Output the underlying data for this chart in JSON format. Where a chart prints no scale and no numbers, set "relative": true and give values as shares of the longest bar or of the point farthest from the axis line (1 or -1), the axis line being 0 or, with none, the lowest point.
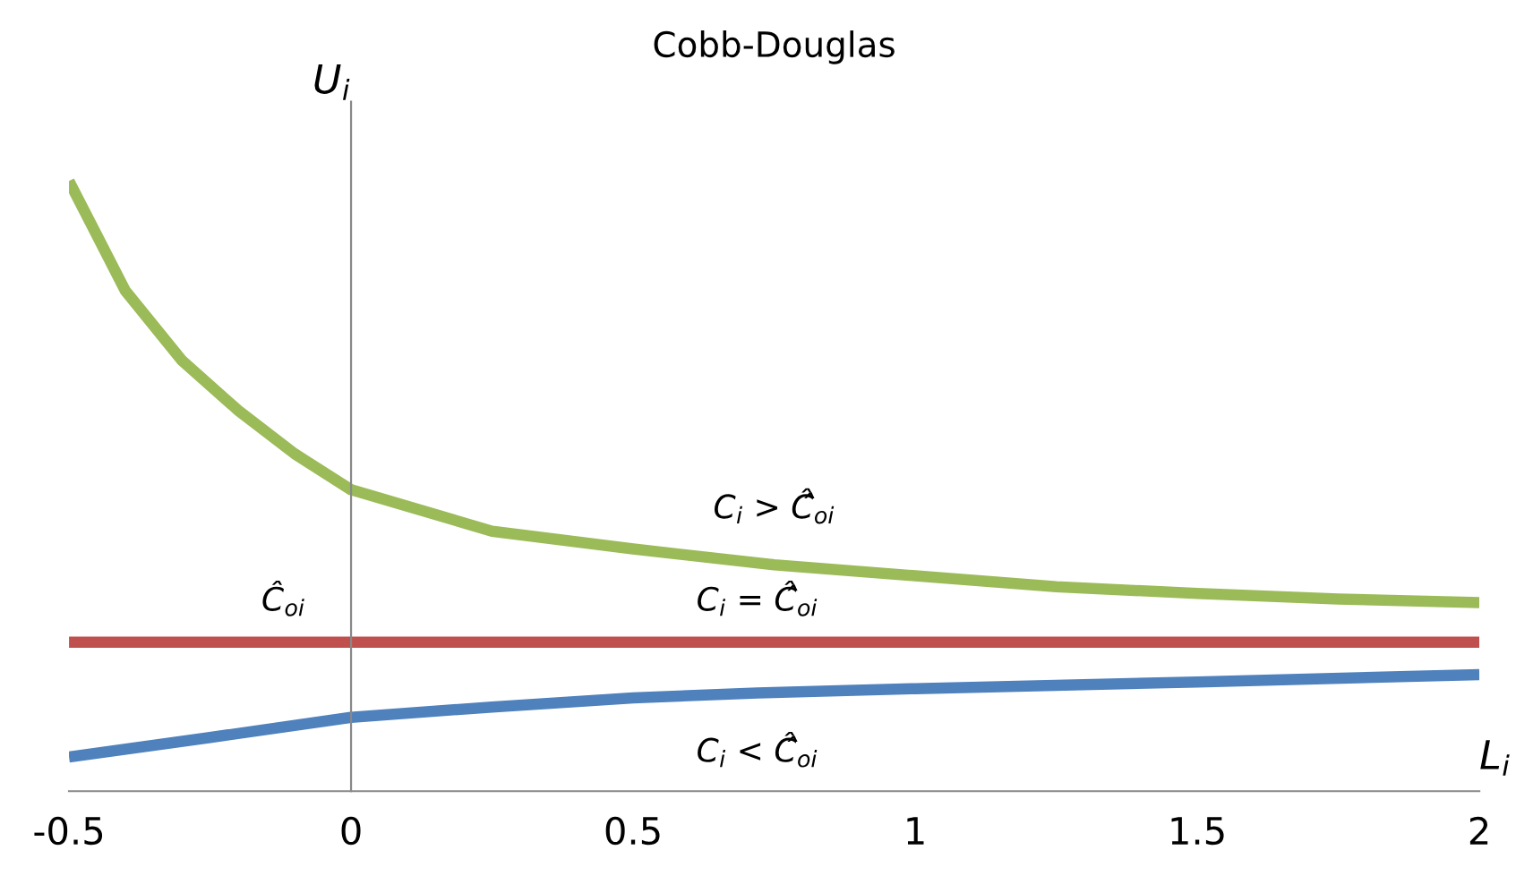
{
  "chart_data": {
    "type": "line",
    "title": "Cobb-Douglas",
    "xlabel": "L$_{i}$",
    "ylabel": "U$_{i}$",
    "relative": true,
    "xlim": [
      -0.5,
      2
    ],
    "xticks": [
      -0.5,
      0,
      0.5,
      1,
      1.5,
      2
    ],
    "tick_labels": "x",
    "legend": false,
    "marker": "none",
    "line_style": "solid",
    "series": [
      {
        "color": "#9bbb59",
        "x": [
          -0.5,
          -0.4,
          -0.3,
          -0.2,
          -0.1,
          0,
          0.25,
          0.5,
          0.75,
          1,
          1.25,
          1.5,
          1.75,
          2
        ],
        "values": [
          1.0,
          0.82,
          0.706,
          0.624,
          0.553,
          0.494,
          0.426,
          0.397,
          0.371,
          0.353,
          0.335,
          0.324,
          0.315,
          0.309
        ]
      },
      {
        "color": "#c0504d",
        "x": [
          -0.5,
          -0.12,
          0.72,
          2
        ],
        "values": [
          0.244,
          0.244,
          0.244,
          0.244
        ]
      },
      {
        "color": "#4f81bd",
        "x": [
          -0.5,
          -0.25,
          0,
          0.25,
          0.5,
          0.72,
          1,
          1.5,
          2
        ],
        "values": [
          0.056,
          0.088,
          0.121,
          0.138,
          0.153,
          0.161,
          0.168,
          0.179,
          0.191
        ]
      }
    ],
    "annotations": [
      {
        "text": "C$_{i}$ > Ĉ̂$_{oi}$",
        "x": 0.75,
        "y": 0.371
      },
      {
        "text": "C$_{i}$ = Ĉ̂$_{oi}$",
        "x": 0.72,
        "y": 0.244
      },
      {
        "text": "C$_{i}$ < Ĉ̂$_{oi}$",
        "x": 0.72,
        "y": 0.161
      },
      {
        "text": "Ĉ$_{oi}$",
        "x": -0.12,
        "y": 0.244
      }
    ]
  }
}
